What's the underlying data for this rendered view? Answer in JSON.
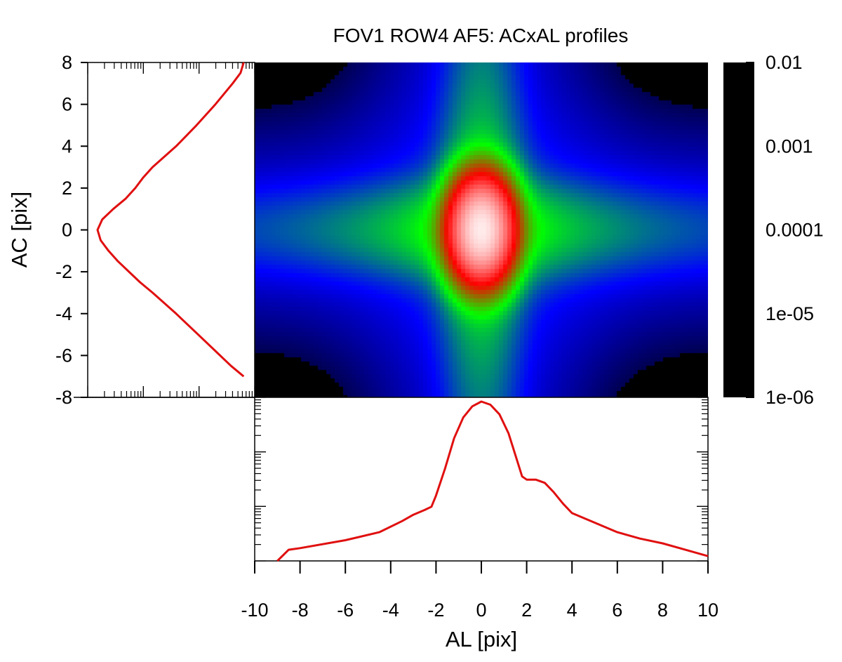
{
  "chart_data": {
    "type": "heatmap",
    "title": "FOV1 ROW4 AF5: ACxAL profiles",
    "xlabel": "AL [pix]",
    "ylabel": "AC [pix]",
    "x_range": [
      -10,
      10
    ],
    "y_range": [
      -8,
      8
    ],
    "x_ticks": [
      "-10",
      "-8",
      "-6",
      "-4",
      "-2",
      "0",
      "2",
      "4",
      "6",
      "8",
      "10"
    ],
    "y_ticks": [
      "8",
      "6",
      "4",
      "2",
      "0",
      "-2",
      "-4",
      "-6",
      "-8"
    ],
    "colorbar": {
      "scale": "log",
      "range": [
        1e-06,
        0.01
      ],
      "tick_labels": [
        "0.01",
        "0.001",
        "0.0001",
        "1e-05",
        "1e-06"
      ],
      "colormap": [
        "#000000",
        "#0000ff",
        "#00ff00",
        "#ff0000",
        "#ffffff"
      ]
    },
    "heatmap_peak": {
      "al": 0,
      "ac": 0,
      "value": 0.01
    },
    "series": [
      {
        "panel": "ac-profile",
        "color": "#e01010",
        "x_scale": "log",
        "points": [
          [
            -7.0,
            0.93
          ],
          [
            -6.5,
            0.85
          ],
          [
            -6.0,
            0.78
          ],
          [
            -5.0,
            0.64
          ],
          [
            -4.0,
            0.5
          ],
          [
            -3.0,
            0.35
          ],
          [
            -2.5,
            0.27
          ],
          [
            -2.0,
            0.2
          ],
          [
            -1.5,
            0.13
          ],
          [
            -1.0,
            0.07
          ],
          [
            -0.5,
            0.02
          ],
          [
            0.0,
            0.0
          ],
          [
            0.5,
            0.03
          ],
          [
            1.0,
            0.1
          ],
          [
            1.5,
            0.18
          ],
          [
            2.0,
            0.24
          ],
          [
            2.5,
            0.29
          ],
          [
            3.0,
            0.35
          ],
          [
            4.0,
            0.5
          ],
          [
            5.0,
            0.63
          ],
          [
            6.0,
            0.75
          ],
          [
            7.0,
            0.86
          ],
          [
            7.5,
            0.91
          ],
          [
            8.0,
            0.93
          ]
        ]
      },
      {
        "panel": "al-profile",
        "color": "#e01010",
        "y_scale": "log",
        "points": [
          [
            -9.0,
            0.0
          ],
          [
            -8.5,
            0.07
          ],
          [
            -8.0,
            0.08
          ],
          [
            -6.0,
            0.13
          ],
          [
            -4.5,
            0.18
          ],
          [
            -3.5,
            0.25
          ],
          [
            -3.0,
            0.29
          ],
          [
            -2.5,
            0.32
          ],
          [
            -2.2,
            0.34
          ],
          [
            -2.0,
            0.41
          ],
          [
            -1.6,
            0.58
          ],
          [
            -1.2,
            0.77
          ],
          [
            -0.8,
            0.9
          ],
          [
            -0.4,
            0.97
          ],
          [
            0.0,
            1.0
          ],
          [
            0.4,
            0.98
          ],
          [
            0.8,
            0.92
          ],
          [
            1.2,
            0.8
          ],
          [
            1.6,
            0.62
          ],
          [
            1.8,
            0.53
          ],
          [
            2.0,
            0.51
          ],
          [
            2.4,
            0.51
          ],
          [
            2.8,
            0.49
          ],
          [
            3.2,
            0.43
          ],
          [
            3.6,
            0.36
          ],
          [
            4.0,
            0.3
          ],
          [
            5.0,
            0.24
          ],
          [
            6.0,
            0.18
          ],
          [
            7.0,
            0.14
          ],
          [
            8.0,
            0.11
          ],
          [
            9.0,
            0.07
          ],
          [
            10.0,
            0.03
          ]
        ]
      }
    ]
  }
}
